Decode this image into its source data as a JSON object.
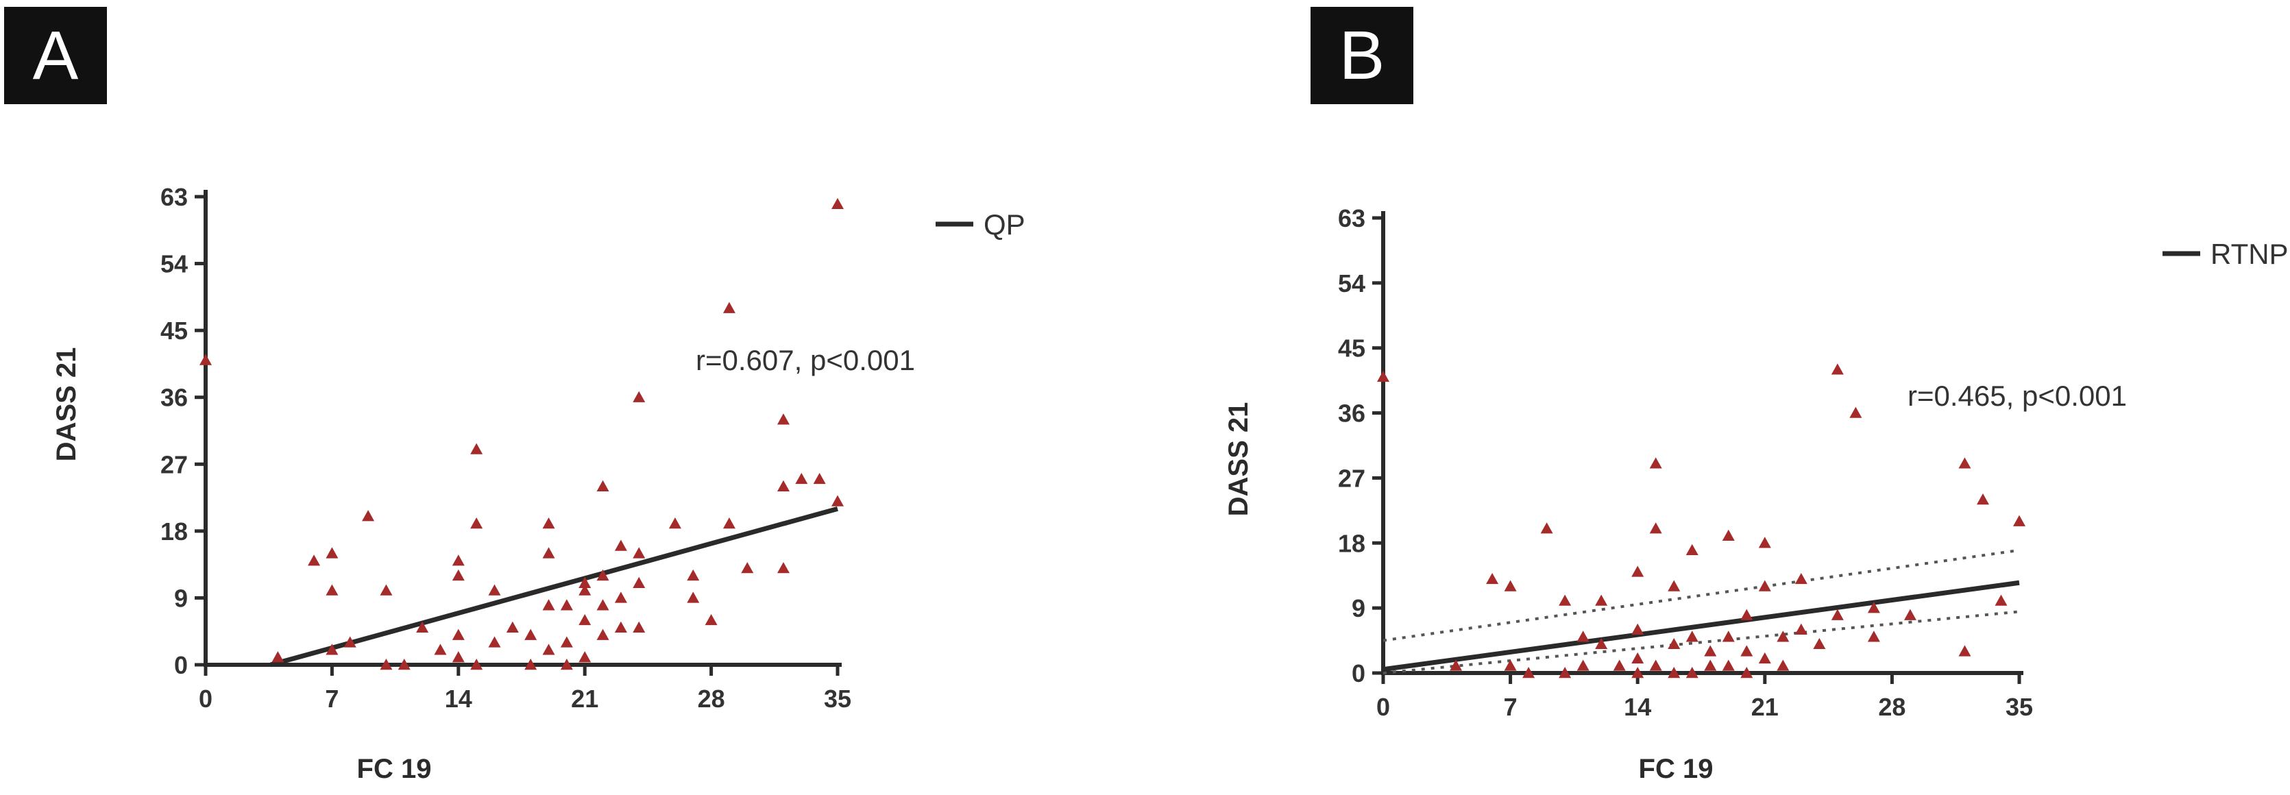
{
  "colors": {
    "point": "#a52a2a",
    "axis": "#2b2b2b",
    "fit": "#2a2a2a"
  },
  "panels": [
    {
      "label": "A",
      "legend": "QP",
      "annotation": "r=0.607, p<0.001",
      "chart_data": {
        "type": "scatter",
        "xlabel": "FC 19",
        "ylabel": "DASS 21",
        "xlim": [
          0,
          35
        ],
        "ylim": [
          0,
          63
        ],
        "xticks": [
          "0",
          "7",
          "14",
          "21",
          "28",
          "35"
        ],
        "yticks": [
          "0",
          "9",
          "18",
          "27",
          "36",
          "45",
          "54",
          "63"
        ],
        "series": [
          {
            "name": "QP",
            "marker": "triangle",
            "points": [
              [
                0,
                41
              ],
              [
                4,
                1
              ],
              [
                6,
                14
              ],
              [
                7,
                15
              ],
              [
                7,
                10
              ],
              [
                7,
                2
              ],
              [
                8,
                3
              ],
              [
                9,
                20
              ],
              [
                10,
                10
              ],
              [
                10,
                0
              ],
              [
                11,
                0
              ],
              [
                12,
                5
              ],
              [
                13,
                2
              ],
              [
                14,
                14
              ],
              [
                14,
                12
              ],
              [
                14,
                4
              ],
              [
                14,
                1
              ],
              [
                15,
                29
              ],
              [
                15,
                19
              ],
              [
                15,
                0
              ],
              [
                16,
                10
              ],
              [
                16,
                3
              ],
              [
                17,
                5
              ],
              [
                18,
                4
              ],
              [
                18,
                0
              ],
              [
                19,
                19
              ],
              [
                19,
                15
              ],
              [
                19,
                8
              ],
              [
                19,
                2
              ],
              [
                20,
                8
              ],
              [
                20,
                3
              ],
              [
                20,
                0
              ],
              [
                21,
                11
              ],
              [
                21,
                10
              ],
              [
                21,
                6
              ],
              [
                21,
                1
              ],
              [
                22,
                24
              ],
              [
                22,
                12
              ],
              [
                22,
                8
              ],
              [
                22,
                4
              ],
              [
                23,
                16
              ],
              [
                23,
                9
              ],
              [
                23,
                5
              ],
              [
                24,
                36
              ],
              [
                24,
                15
              ],
              [
                24,
                11
              ],
              [
                24,
                5
              ],
              [
                26,
                19
              ],
              [
                27,
                12
              ],
              [
                27,
                9
              ],
              [
                28,
                6
              ],
              [
                29,
                48
              ],
              [
                29,
                19
              ],
              [
                30,
                13
              ],
              [
                32,
                33
              ],
              [
                32,
                24
              ],
              [
                32,
                13
              ],
              [
                33,
                25
              ],
              [
                34,
                25
              ],
              [
                35,
                62
              ],
              [
                35,
                22
              ]
            ]
          }
        ],
        "fit": [
          [
            3.6,
            0
          ],
          [
            35,
            21
          ]
        ]
      }
    },
    {
      "label": "B",
      "legend": "RTNP",
      "annotation": "r=0.465, p<0.001",
      "chart_data": {
        "type": "scatter",
        "xlabel": "FC 19",
        "ylabel": "DASS 21",
        "xlim": [
          0,
          35
        ],
        "ylim": [
          0,
          63
        ],
        "xticks": [
          "0",
          "7",
          "14",
          "21",
          "28",
          "35"
        ],
        "yticks": [
          "0",
          "9",
          "18",
          "27",
          "36",
          "45",
          "54",
          "63"
        ],
        "series": [
          {
            "name": "RTNP",
            "marker": "triangle",
            "points": [
              [
                0,
                41
              ],
              [
                4,
                1
              ],
              [
                6,
                13
              ],
              [
                7,
                12
              ],
              [
                7,
                1
              ],
              [
                8,
                0
              ],
              [
                9,
                20
              ],
              [
                10,
                10
              ],
              [
                10,
                0
              ],
              [
                11,
                5
              ],
              [
                11,
                1
              ],
              [
                12,
                10
              ],
              [
                12,
                4
              ],
              [
                13,
                1
              ],
              [
                14,
                14
              ],
              [
                14,
                6
              ],
              [
                14,
                2
              ],
              [
                14,
                0
              ],
              [
                15,
                29
              ],
              [
                15,
                20
              ],
              [
                15,
                1
              ],
              [
                16,
                12
              ],
              [
                16,
                4
              ],
              [
                16,
                0
              ],
              [
                17,
                17
              ],
              [
                17,
                5
              ],
              [
                17,
                0
              ],
              [
                18,
                3
              ],
              [
                18,
                1
              ],
              [
                19,
                19
              ],
              [
                19,
                5
              ],
              [
                19,
                1
              ],
              [
                20,
                8
              ],
              [
                20,
                3
              ],
              [
                20,
                0
              ],
              [
                21,
                18
              ],
              [
                21,
                12
              ],
              [
                21,
                2
              ],
              [
                22,
                5
              ],
              [
                22,
                1
              ],
              [
                23,
                13
              ],
              [
                23,
                6
              ],
              [
                24,
                4
              ],
              [
                25,
                42
              ],
              [
                25,
                8
              ],
              [
                26,
                36
              ],
              [
                27,
                9
              ],
              [
                27,
                5
              ],
              [
                29,
                8
              ],
              [
                32,
                29
              ],
              [
                32,
                3
              ],
              [
                33,
                24
              ],
              [
                34,
                10
              ],
              [
                35,
                21
              ]
            ]
          }
        ],
        "fit": [
          [
            0,
            0.5
          ],
          [
            35,
            12.5
          ]
        ],
        "ci_upper": [
          [
            0,
            4.5
          ],
          [
            35,
            17
          ]
        ],
        "ci_lower": [
          [
            0,
            0
          ],
          [
            35,
            8.5
          ]
        ]
      }
    }
  ]
}
